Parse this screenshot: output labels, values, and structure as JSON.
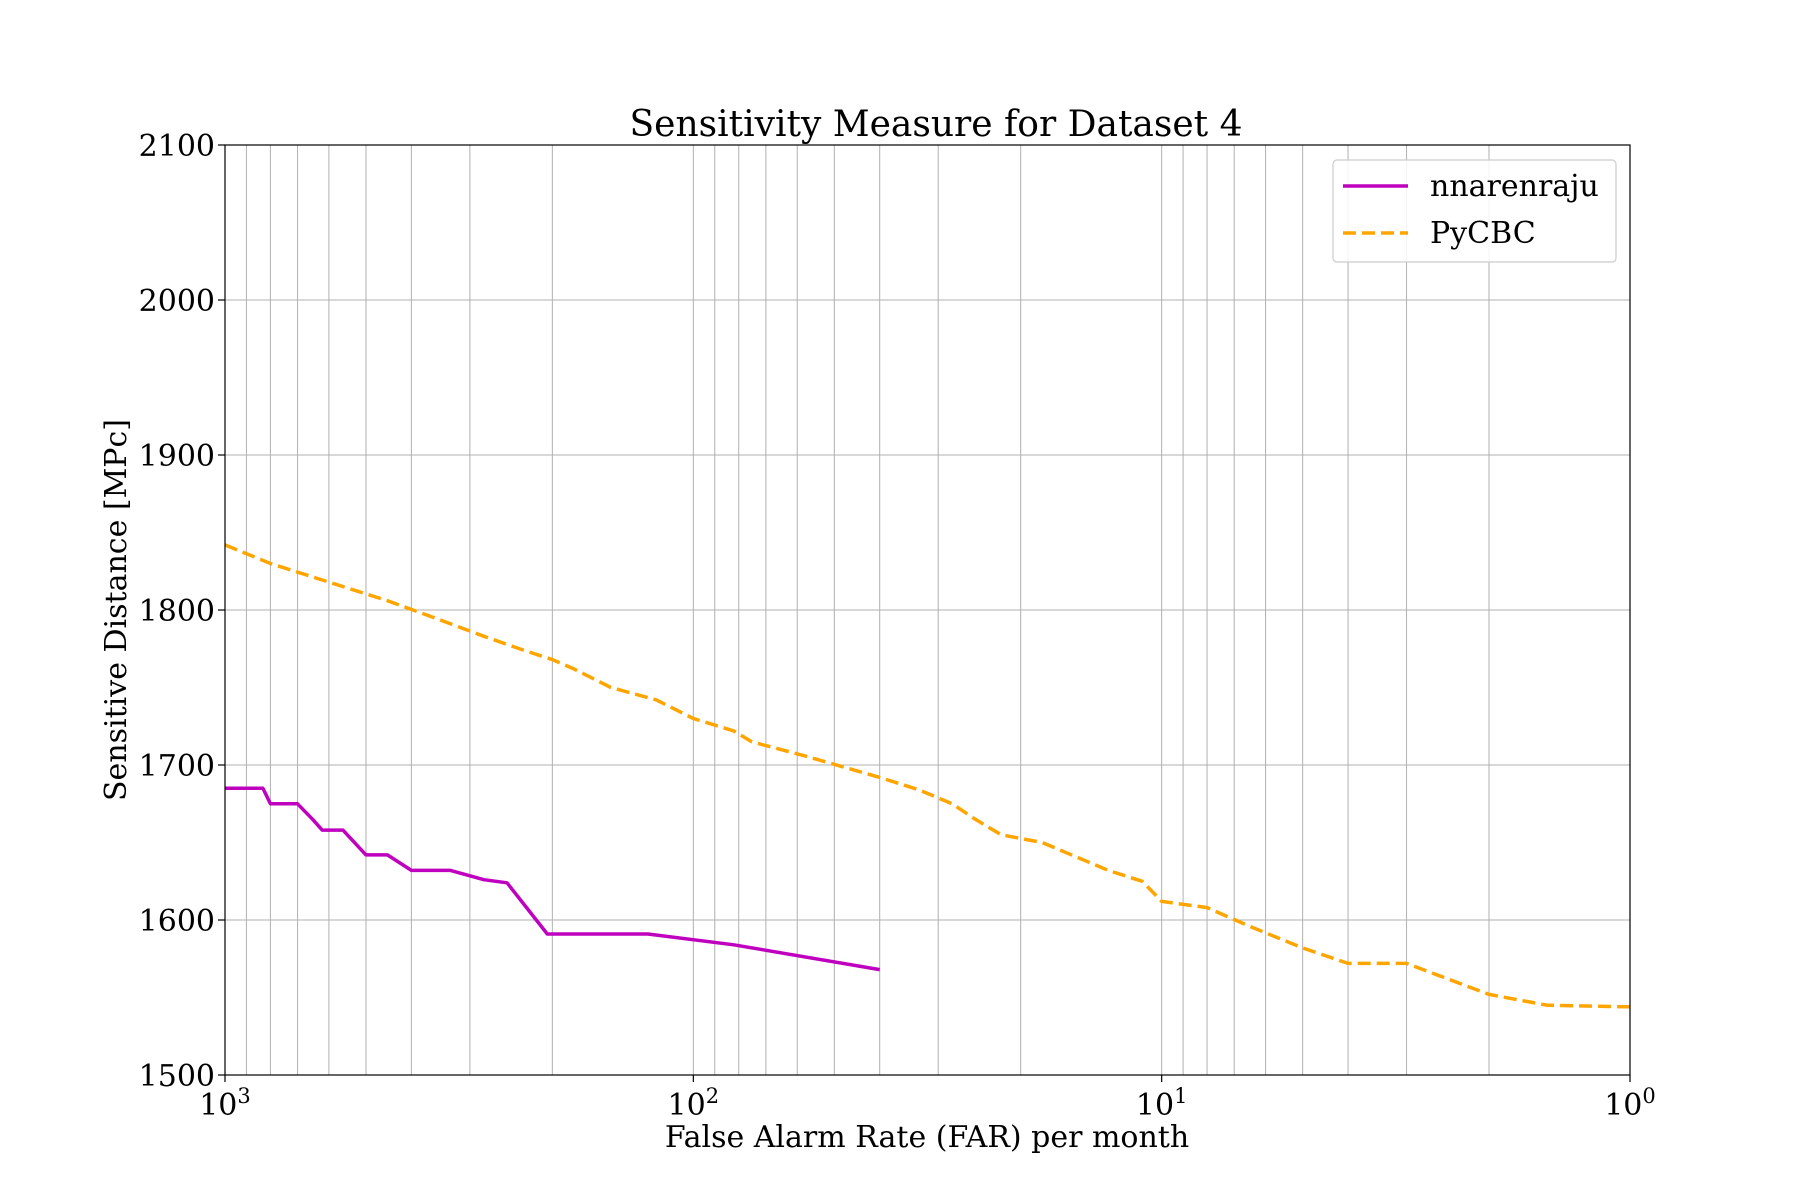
{
  "chart_data": {
    "type": "line",
    "title": "Sensitivity Measure for Dataset 4",
    "xlabel": "False Alarm Rate (FAR) per month",
    "ylabel": "Sensitive Distance [MPc]",
    "x_scale": "log",
    "x_inverted": true,
    "xlim": [
      1000,
      1
    ],
    "ylim": [
      1500,
      2100
    ],
    "yticks": [
      1500,
      1600,
      1700,
      1800,
      1900,
      2000,
      2100
    ],
    "ytick_labels": [
      "1500",
      "1600",
      "1700",
      "1800",
      "1900",
      "2000",
      "2100"
    ],
    "xticks": [
      {
        "base": "10",
        "exp": "3",
        "value": 1000
      },
      {
        "base": "10",
        "exp": "2",
        "value": 100
      },
      {
        "base": "10",
        "exp": "1",
        "value": 10
      },
      {
        "base": "10",
        "exp": "0",
        "value": 1
      }
    ],
    "grid": true,
    "legend_position": "top-right",
    "series": [
      {
        "name": "nnarenraju",
        "color": "#bf00bf",
        "style": "solid",
        "x": [
          1000,
          830,
          800,
          700,
          650,
          620,
          560,
          500,
          450,
          400,
          330,
          280,
          250,
          205,
          125,
          82,
          40
        ],
        "y": [
          1685,
          1685,
          1675,
          1675,
          1665,
          1658,
          1658,
          1642,
          1642,
          1632,
          1632,
          1626,
          1624,
          1591,
          1591,
          1584,
          1568
        ]
      },
      {
        "name": "PyCBC",
        "color": "#ffa500",
        "style": "dashed",
        "x": [
          1000,
          800,
          600,
          450,
          350,
          280,
          230,
          200,
          180,
          150,
          120,
          100,
          82,
          75,
          58,
          40,
          33,
          28,
          25,
          22,
          18,
          13,
          11,
          10,
          8,
          6.5,
          5,
          4,
          3,
          2,
          1.5,
          1
        ],
        "y": [
          1842,
          1830,
          1818,
          1806,
          1794,
          1783,
          1774,
          1768,
          1762,
          1750,
          1742,
          1730,
          1722,
          1715,
          1706,
          1692,
          1684,
          1675,
          1665,
          1655,
          1650,
          1632,
          1625,
          1612,
          1608,
          1596,
          1582,
          1572,
          1572,
          1552,
          1545,
          1544
        ]
      }
    ]
  }
}
